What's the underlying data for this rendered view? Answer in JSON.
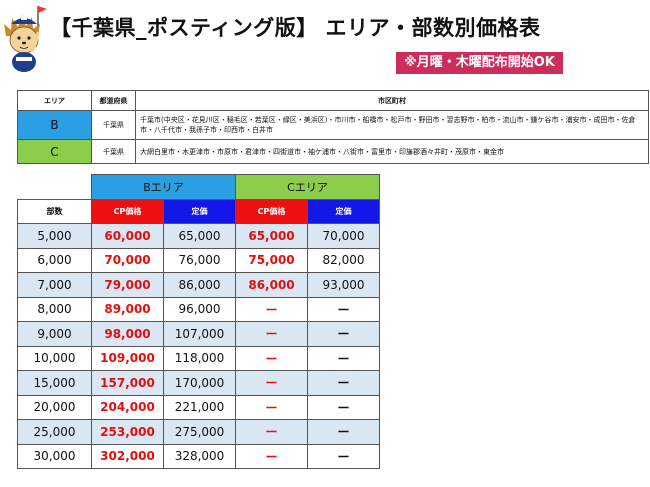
{
  "title": "【千葉県_ポスティング版】 エリア・部数別価格表",
  "notice": "※月曜・木曜配布開始OK",
  "area_table": {
    "headers": [
      "エリア",
      "都道府県",
      "市区町村"
    ],
    "rows": [
      {
        "area": "B",
        "prefecture": "千葉県",
        "cities": "千葉市(中央区・花見川区・稲毛区・若葉区・緑区・美浜区)・市川市・船橋市・松戸市・野田市・習志野市・柏市・流山市・鎌ケ谷市・浦安市・成田市・佐倉市・八千代市・我孫子市・印西市・白井市"
      },
      {
        "area": "C",
        "prefecture": "千葉県",
        "cities": "大網白里市・木更津市・市原市・君津市・四街道市・袖ケ浦市・八街市・富里市・印旛郡酒々井町・茂原市・東金市"
      }
    ]
  },
  "price_table": {
    "area_b": "Bエリア",
    "area_c": "Cエリア",
    "qty_label": "部数",
    "cp_label": "CP価格",
    "list_label": "定価",
    "rows": [
      {
        "qty": "5,000",
        "b_cp": "60,000",
        "b_list": "65,000",
        "c_cp": "65,000",
        "c_list": "70,000"
      },
      {
        "qty": "6,000",
        "b_cp": "70,000",
        "b_list": "76,000",
        "c_cp": "75,000",
        "c_list": "82,000"
      },
      {
        "qty": "7,000",
        "b_cp": "79,000",
        "b_list": "86,000",
        "c_cp": "86,000",
        "c_list": "93,000"
      },
      {
        "qty": "8,000",
        "b_cp": "89,000",
        "b_list": "96,000",
        "c_cp": "ー",
        "c_list": "ー"
      },
      {
        "qty": "9,000",
        "b_cp": "98,000",
        "b_list": "107,000",
        "c_cp": "ー",
        "c_list": "ー"
      },
      {
        "qty": "10,000",
        "b_cp": "109,000",
        "b_list": "118,000",
        "c_cp": "ー",
        "c_list": "ー"
      },
      {
        "qty": "15,000",
        "b_cp": "157,000",
        "b_list": "170,000",
        "c_cp": "ー",
        "c_list": "ー"
      },
      {
        "qty": "20,000",
        "b_cp": "204,000",
        "b_list": "221,000",
        "c_cp": "ー",
        "c_list": "ー"
      },
      {
        "qty": "25,000",
        "b_cp": "253,000",
        "b_list": "275,000",
        "c_cp": "ー",
        "c_list": "ー"
      },
      {
        "qty": "30,000",
        "b_cp": "302,000",
        "b_list": "328,000",
        "c_cp": "ー",
        "c_list": "ー"
      }
    ]
  },
  "colors": {
    "area_b": "#2b9fe3",
    "area_c": "#8ccd4c",
    "cp_header": "#ee1111",
    "list_header": "#1318e8",
    "notice_bg": "#cc2d5b",
    "stripe": "#dae6f2"
  },
  "mascot_icon": "hedgehog-mascot-icon"
}
